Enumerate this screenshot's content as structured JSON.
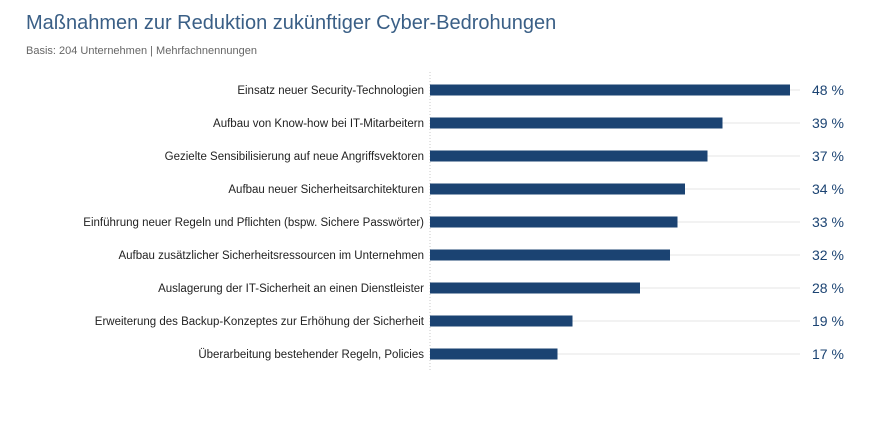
{
  "header": {
    "title": "Maßnahmen zur Reduktion zukünftiger Cyber-Bedrohungen",
    "subtitle": "Basis: 204 Unternehmen | Mehrfachnennungen"
  },
  "colors": {
    "bar": "#1b4372",
    "value_text": "#1b4372",
    "gridline": "#e4e4e4",
    "axis": "#c8c8c8"
  },
  "chart_data": {
    "type": "bar",
    "orientation": "horizontal",
    "title": "Maßnahmen zur Reduktion zukünftiger Cyber-Bedrohungen",
    "subtitle": "Basis: 204 Unternehmen | Mehrfachnennungen",
    "xlabel": "",
    "ylabel": "",
    "xlim": [
      0,
      48
    ],
    "value_suffix": " %",
    "categories": [
      "Einsatz neuer Security-Technologien",
      "Aufbau von Know-how bei IT-Mitarbeitern",
      "Gezielte Sensibilisierung auf neue Angriffsvektoren",
      "Aufbau neuer Sicherheitsarchitekturen",
      "Einführung neuer Regeln und Pflichten (bspw. Sichere Passwörter)",
      "Aufbau zusätzlicher Sicherheitsressourcen im Unternehmen",
      "Auslagerung der IT-Sicherheit an einen Dienstleister",
      "Erweiterung des Backup-Konzeptes zur Erhöhung der Sicherheit",
      "Überarbeitung bestehender Regeln, Policies"
    ],
    "values": [
      48,
      39,
      37,
      34,
      33,
      32,
      28,
      19,
      17
    ],
    "value_labels": [
      "48 %",
      "39 %",
      "37 %",
      "34 %",
      "33 %",
      "32 %",
      "28 %",
      "19 %",
      "17 %"
    ],
    "grid": true,
    "legend": "none"
  }
}
